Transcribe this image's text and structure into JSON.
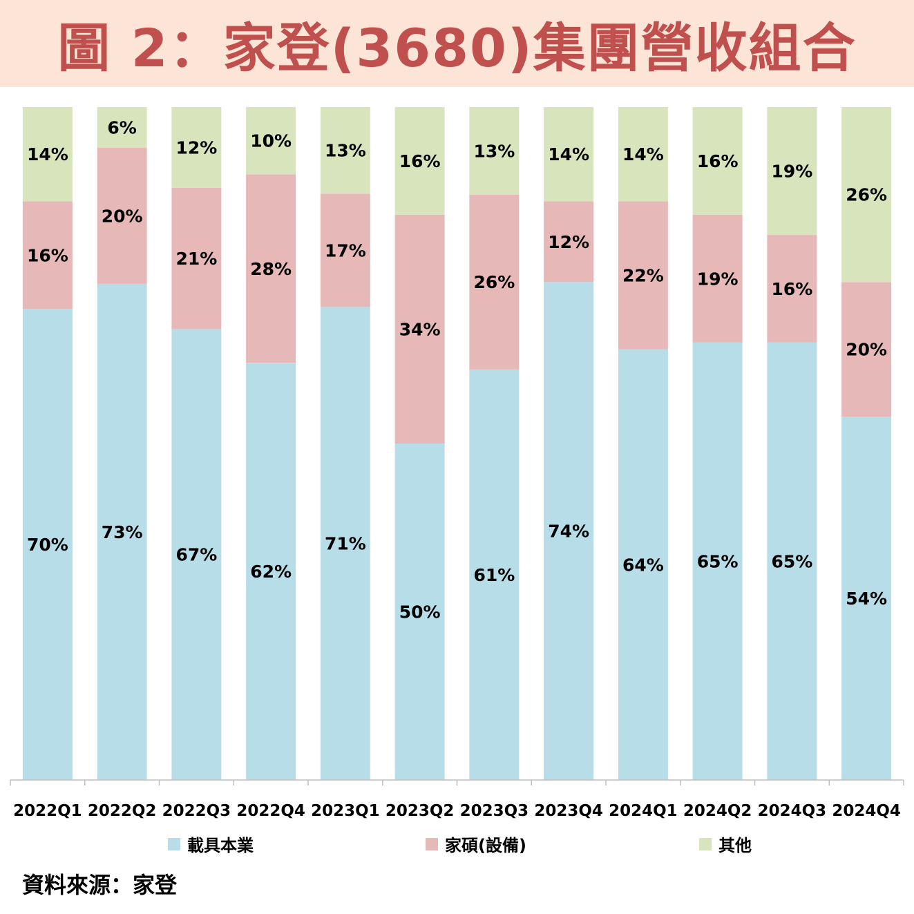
{
  "title": "圖 2：家登(3680)集團營收組合",
  "source": "資料來源：家登",
  "chart_data": {
    "type": "bar",
    "stacked": true,
    "ylim": [
      0,
      100
    ],
    "legend_position": "bottom",
    "categories": [
      "2022Q1",
      "2022Q2",
      "2022Q3",
      "2022Q4",
      "2023Q1",
      "2023Q2",
      "2023Q3",
      "2023Q4",
      "2024Q1",
      "2024Q2",
      "2024Q3",
      "2024Q4"
    ],
    "series": [
      {
        "name": "載具本業",
        "color": "#b7dde8",
        "values": [
          70,
          73,
          67,
          62,
          71,
          50,
          61,
          74,
          64,
          65,
          65,
          54
        ]
      },
      {
        "name": "家碩(設備)",
        "color": "#e6b8b7",
        "values": [
          16,
          20,
          21,
          28,
          17,
          34,
          26,
          12,
          22,
          19,
          16,
          20
        ]
      },
      {
        "name": "其他",
        "color": "#d8e4bc",
        "values": [
          14,
          6,
          12,
          10,
          13,
          16,
          13,
          14,
          14,
          16,
          19,
          26
        ]
      }
    ]
  }
}
